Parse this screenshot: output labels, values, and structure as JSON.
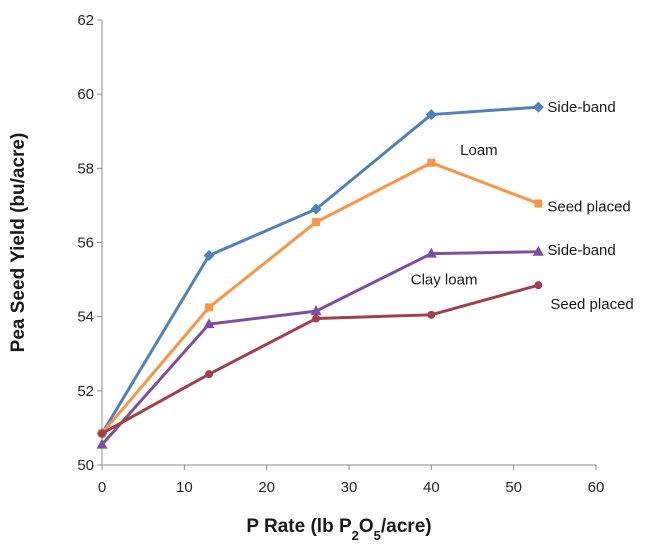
{
  "chart_data": {
    "type": "line",
    "xlabel": {
      "parts": [
        {
          "text": "P Rate (lb P"
        },
        {
          "text": "2",
          "sub": true
        },
        {
          "text": "O"
        },
        {
          "text": "5",
          "sub": true
        },
        {
          "text": "/acre)"
        }
      ]
    },
    "ylabel": "Pea Seed Yield (bu/acre)",
    "xlim": [
      0,
      60
    ],
    "ylim": [
      50,
      62
    ],
    "xticks": [
      0,
      10,
      20,
      30,
      40,
      50,
      60
    ],
    "yticks": [
      50,
      52,
      54,
      56,
      58,
      60,
      62
    ],
    "grid": false,
    "x": [
      0,
      13,
      26,
      40,
      53
    ],
    "series": [
      {
        "name": "Side-band",
        "group": "Loam",
        "color": "#4F81BD",
        "marker": "diamond",
        "values": [
          50.85,
          55.65,
          56.9,
          59.45,
          59.65
        ]
      },
      {
        "name": "Seed placed",
        "group": "Loam",
        "color": "#F79646",
        "marker": "square",
        "values": [
          50.85,
          54.25,
          56.55,
          58.15,
          57.05
        ]
      },
      {
        "name": "Side-band",
        "group": "Clay loam",
        "color": "#7F4F9F",
        "marker": "triangle",
        "values": [
          50.55,
          53.8,
          54.15,
          55.7,
          55.75
        ]
      },
      {
        "name": "Seed placed",
        "group": "Clay loam",
        "color": "#A0404A",
        "marker": "circle",
        "values": [
          50.85,
          52.45,
          53.95,
          54.05,
          54.85
        ]
      }
    ],
    "annotations": [
      "Loam",
      "Clay loam"
    ]
  }
}
